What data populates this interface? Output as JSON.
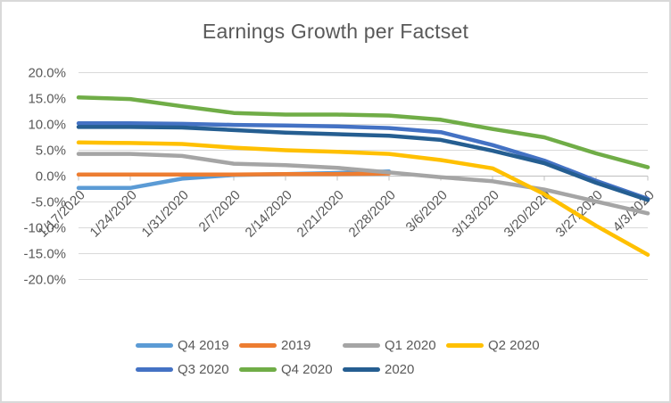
{
  "chart_data": {
    "type": "line",
    "title": "Earnings Growth per Factset",
    "categories": [
      "1/17/2020",
      "1/24/2020",
      "1/31/2020",
      "2/7/2020",
      "2/14/2020",
      "2/21/2020",
      "2/28/2020",
      "3/6/2020",
      "3/13/2020",
      "3/20/2020",
      "3/27/2020",
      "4/3/2020"
    ],
    "series": [
      {
        "name": "Q4 2019",
        "color": "#5B9BD5",
        "values": [
          -2.3,
          -2.3,
          -0.5,
          0.2,
          0.4,
          0.6,
          0.9,
          null,
          null,
          null,
          null,
          null
        ]
      },
      {
        "name": "2019",
        "color": "#ED7D31",
        "values": [
          0.3,
          0.3,
          0.3,
          0.3,
          0.4,
          0.4,
          0.5,
          null,
          null,
          null,
          null,
          null
        ]
      },
      {
        "name": "Q1 2020",
        "color": "#A5A5A5",
        "values": [
          4.3,
          4.3,
          3.9,
          2.4,
          2.1,
          1.6,
          0.7,
          -0.2,
          -1.0,
          -2.6,
          -4.9,
          -7.2
        ]
      },
      {
        "name": "Q2 2020",
        "color": "#FFC000",
        "values": [
          6.5,
          6.4,
          6.2,
          5.5,
          5.0,
          4.7,
          4.3,
          3.1,
          1.5,
          -3.5,
          -9.6,
          -15.2
        ]
      },
      {
        "name": "Q3 2020",
        "color": "#4472C4",
        "values": [
          10.2,
          10.2,
          10.1,
          9.9,
          9.8,
          9.6,
          9.3,
          8.5,
          6.0,
          3.0,
          -0.9,
          -4.4
        ]
      },
      {
        "name": "Q4 2020",
        "color": "#70AD47",
        "values": [
          15.2,
          14.9,
          13.5,
          12.2,
          11.9,
          11.9,
          11.7,
          10.9,
          9.1,
          7.5,
          4.4,
          1.7
        ]
      },
      {
        "name": "2020",
        "color": "#255E91",
        "values": [
          9.5,
          9.5,
          9.4,
          8.9,
          8.4,
          8.1,
          7.8,
          7.0,
          4.9,
          2.5,
          -1.3,
          -4.6
        ]
      }
    ],
    "ylim": [
      -20,
      20
    ],
    "y_tick_step": 5,
    "y_tick_labels": [
      "20.0%",
      "15.0%",
      "10.0%",
      "5.0%",
      "0.0%",
      "-5.0%",
      "-10.0%",
      "-15.0%",
      "-20.0%"
    ],
    "grid": true,
    "legend_position": "bottom",
    "gridline_color": "#D9D9D9",
    "axis_color": "#BFBFBF"
  }
}
